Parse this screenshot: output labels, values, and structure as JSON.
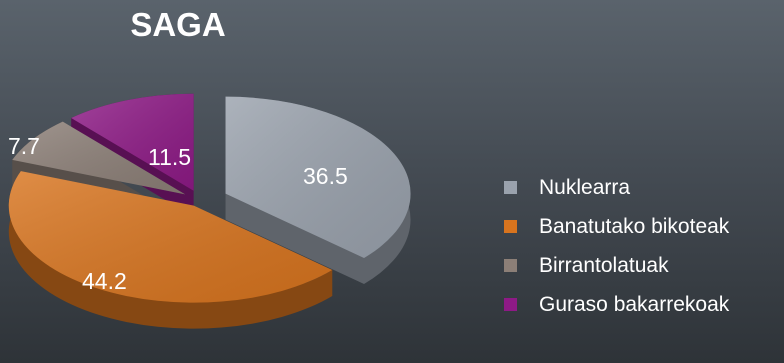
{
  "chart_data": {
    "type": "pie",
    "title": "SAGA",
    "categories": [
      "Nuklearra",
      "Banatutako bikoteak",
      "Birrantolatuak",
      "Guraso bakarrekoak"
    ],
    "values": [
      36.5,
      44.2,
      7.7,
      11.5
    ],
    "value_labels": [
      "36.5",
      "44.2",
      "7.7",
      "11.5"
    ],
    "colors": [
      "#9aa2ad",
      "#d8741e",
      "#8c7f77",
      "#8e1a86"
    ],
    "legend_placement": "right",
    "exploded": true,
    "three_d": true
  }
}
